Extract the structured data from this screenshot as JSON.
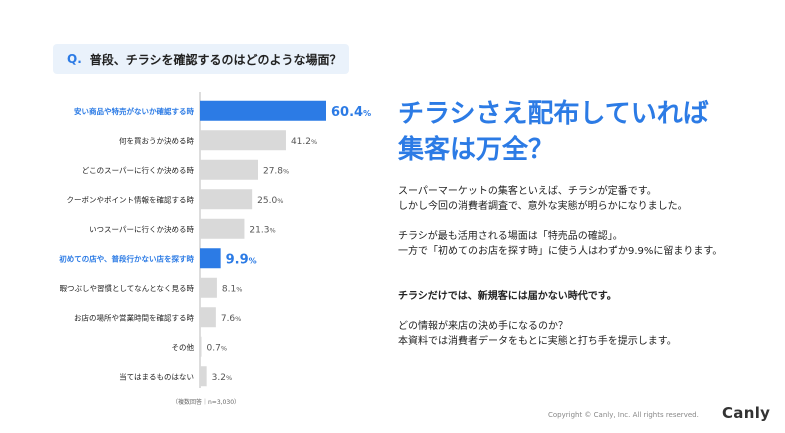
{
  "question": {
    "prefix": "Q.",
    "text": "普段、チラシを確認するのはどのような場面？"
  },
  "chart_data": {
    "type": "bar",
    "orientation": "horizontal",
    "title": "普段、チラシを確認するのはどのような場面？",
    "categories": [
      "安い商品や特売がないか確認する時",
      "何を買おうか決める時",
      "どこのスーパーに行くか決める時",
      "クーポンやポイント情報を確認する時",
      "いつスーパーに行くか決める時",
      "初めての店や、普段行かない店を探す時",
      "暇つぶしや習慣としてなんとなく見る時",
      "お店の場所や営業時間を確認する時",
      "その他",
      "当てはまるものはない"
    ],
    "values": [
      60.4,
      41.2,
      27.8,
      25.0,
      21.3,
      9.9,
      8.1,
      7.6,
      0.7,
      3.2
    ],
    "value_labels": [
      "60.4",
      "41.2",
      "27.8",
      "25.0",
      "21.3",
      "9.9",
      "8.1",
      "7.6",
      "0.7",
      "3.2"
    ],
    "unit": "%",
    "highlighted": [
      0,
      5
    ],
    "xlim": [
      0,
      60.4
    ],
    "note": "（複数回答｜n=3,030）"
  },
  "colors": {
    "accent": "#2c7be5",
    "bar": "#d9d9d9",
    "text": "#222222",
    "muted": "#666666"
  },
  "headline": {
    "line1": "チラシさえ配布していれば",
    "line2": "集客は万全？"
  },
  "body": {
    "p1": "スーパーマーケットの集客といえば、チラシが定番です。",
    "p2": "しかし今回の消費者調査で、意外な実態が明らかになりました。",
    "p3": "チラシが最も活用される場面は「特売品の確認」。",
    "p4": "一方で「初めてのお店を探す時」に使う人はわずか9.9%に留まります。",
    "p5": "チラシだけでは、新規客には届かない時代です。",
    "p6": "どの情報が来店の決め手になるのか？",
    "p7": "本資料では消費者データをもとに実態と打ち手を提示します。"
  },
  "footer": {
    "copyright": "Copyright © Canly, Inc. All rights reserved.",
    "logo": "Canly"
  }
}
